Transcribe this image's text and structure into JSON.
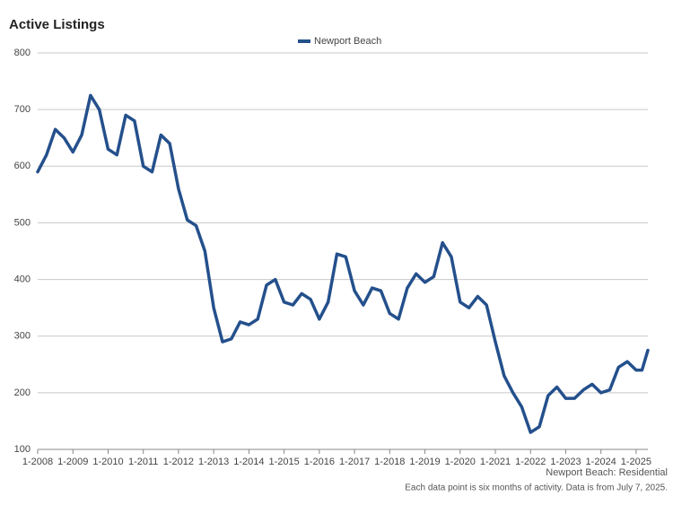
{
  "chart_data": {
    "type": "line",
    "title": "Active Listings",
    "x": [
      "2008-01",
      "2008-04",
      "2008-07",
      "2008-10",
      "2009-01",
      "2009-04",
      "2009-07",
      "2009-10",
      "2010-01",
      "2010-04",
      "2010-07",
      "2010-10",
      "2011-01",
      "2011-04",
      "2011-07",
      "2011-10",
      "2012-01",
      "2012-04",
      "2012-07",
      "2012-10",
      "2013-01",
      "2013-04",
      "2013-07",
      "2013-10",
      "2014-01",
      "2014-04",
      "2014-07",
      "2014-10",
      "2015-01",
      "2015-04",
      "2015-07",
      "2015-10",
      "2016-01",
      "2016-04",
      "2016-07",
      "2016-10",
      "2017-01",
      "2017-04",
      "2017-07",
      "2017-10",
      "2018-01",
      "2018-04",
      "2018-07",
      "2018-10",
      "2019-01",
      "2019-04",
      "2019-07",
      "2019-10",
      "2020-01",
      "2020-04",
      "2020-07",
      "2020-10",
      "2021-01",
      "2021-04",
      "2021-07",
      "2021-10",
      "2022-01",
      "2022-04",
      "2022-07",
      "2022-10",
      "2023-01",
      "2023-04",
      "2023-07",
      "2023-10",
      "2024-01",
      "2024-04",
      "2024-07",
      "2024-10",
      "2025-01",
      "2025-03",
      "2025-05"
    ],
    "series": [
      {
        "name": "Newport Beach",
        "color": "#24508c",
        "values": [
          590,
          620,
          665,
          650,
          625,
          655,
          725,
          700,
          630,
          620,
          690,
          680,
          600,
          590,
          655,
          640,
          560,
          505,
          495,
          450,
          350,
          290,
          295,
          325,
          320,
          330,
          390,
          400,
          360,
          355,
          375,
          365,
          330,
          360,
          445,
          440,
          380,
          355,
          385,
          380,
          340,
          330,
          385,
          410,
          395,
          405,
          465,
          440,
          360,
          350,
          370,
          355,
          290,
          230,
          200,
          175,
          130,
          140,
          195,
          210,
          190,
          190,
          205,
          215,
          200,
          205,
          245,
          255,
          240,
          240,
          275
        ]
      }
    ],
    "xlim": [
      "2008-01",
      "2025-05"
    ],
    "xticks": [
      {
        "value": "2008-01",
        "label": "1-2008"
      },
      {
        "value": "2009-01",
        "label": "1-2009"
      },
      {
        "value": "2010-01",
        "label": "1-2010"
      },
      {
        "value": "2011-01",
        "label": "1-2011"
      },
      {
        "value": "2012-01",
        "label": "1-2012"
      },
      {
        "value": "2013-01",
        "label": "1-2013"
      },
      {
        "value": "2014-01",
        "label": "1-2014"
      },
      {
        "value": "2015-01",
        "label": "1-2015"
      },
      {
        "value": "2016-01",
        "label": "1-2016"
      },
      {
        "value": "2017-01",
        "label": "1-2017"
      },
      {
        "value": "2018-01",
        "label": "1-2018"
      },
      {
        "value": "2019-01",
        "label": "1-2019"
      },
      {
        "value": "2020-01",
        "label": "1-2020"
      },
      {
        "value": "2021-01",
        "label": "1-2021"
      },
      {
        "value": "2022-01",
        "label": "1-2022"
      },
      {
        "value": "2023-01",
        "label": "1-2023"
      },
      {
        "value": "2024-01",
        "label": "1-2024"
      },
      {
        "value": "2025-01",
        "label": "1-2025"
      }
    ],
    "ylim": [
      100,
      800
    ],
    "yticks": [
      100,
      200,
      300,
      400,
      500,
      600,
      700,
      800
    ],
    "grid": true,
    "footer": "Newport Beach: Residential",
    "note": "Each data point is six months of activity. Data is from July 7, 2025."
  }
}
